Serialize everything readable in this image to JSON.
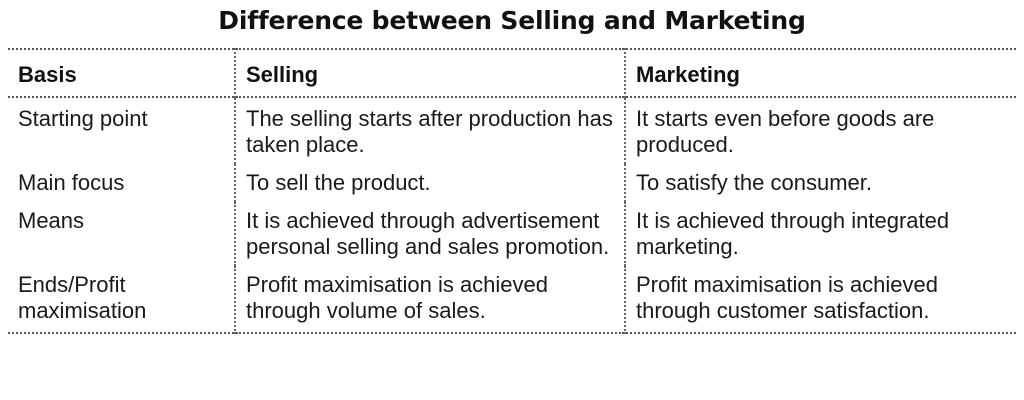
{
  "document": {
    "title": "Difference between Selling and Marketing",
    "table": {
      "headers": [
        "Basis",
        "Selling",
        "Marketing"
      ],
      "rows": [
        {
          "basis": "Starting point",
          "selling": "The selling starts after production has taken place.",
          "marketing": "It starts even before goods are produced."
        },
        {
          "basis": "Main focus",
          "selling": "To sell the product.",
          "marketing": "To satisfy the consumer."
        },
        {
          "basis": "Means",
          "selling": "It is achieved through advertisement personal selling and sales promotion.",
          "marketing": "It is achieved through integrated marketing."
        },
        {
          "basis": "Ends/Profit maximisation",
          "selling": "Profit maximisation is achieved through volume of sales.",
          "marketing": "Profit maximisation is achieved through customer satisfaction."
        }
      ]
    }
  }
}
